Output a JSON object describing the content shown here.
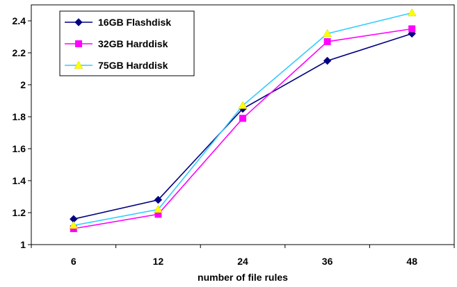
{
  "chart_data": {
    "type": "line",
    "categories": [
      "6",
      "12",
      "24",
      "36",
      "48"
    ],
    "xlabel": "number of file rules",
    "ylabel": "",
    "ylim": [
      1,
      2.5
    ],
    "yticks": [
      "1",
      "1.2",
      "1.4",
      "1.6",
      "1.8",
      "2",
      "2.2",
      "2.4"
    ],
    "grid": false,
    "legend_position": "top-left",
    "series": [
      {
        "name": "16GB Flashdisk",
        "values": [
          1.16,
          1.28,
          1.85,
          2.15,
          2.32
        ],
        "color": "#000080",
        "marker": "diamond"
      },
      {
        "name": "32GB Harddisk",
        "values": [
          1.1,
          1.19,
          1.79,
          2.27,
          2.35
        ],
        "color": "#ff00ff",
        "marker": "square"
      },
      {
        "name": "75GB Harddisk",
        "values": [
          1.12,
          1.22,
          1.87,
          2.32,
          2.45
        ],
        "color": "#33ccff",
        "marker": "triangle",
        "marker_color": "#ffff00"
      }
    ]
  }
}
